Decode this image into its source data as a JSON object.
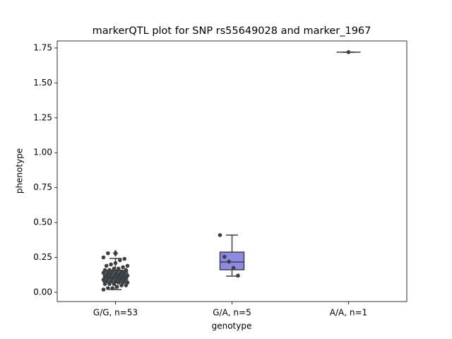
{
  "chart_data": {
    "type": "box",
    "title": "markerQTL plot for SNP rs55649028 and marker_1967",
    "x_label": "genotype",
    "y_label": "phenotype",
    "categories": [
      "G/G, n=53",
      "G/A, n=5",
      "A/A, n=1"
    ],
    "colors": [
      "#3a92c9",
      "#8b8ae6",
      "#5cb85c"
    ],
    "boxes": [
      {
        "whislo": 0.02,
        "q1": 0.07,
        "median": 0.11,
        "q3": 0.157,
        "whishi": 0.243,
        "fliers": [
          0.28
        ]
      },
      {
        "whislo": 0.116,
        "q1": 0.162,
        "median": 0.217,
        "q3": 0.288,
        "whishi": 0.41,
        "fliers": []
      },
      {
        "whislo": 1.72,
        "q1": 1.72,
        "median": 1.72,
        "q3": 1.72,
        "whishi": 1.72,
        "fliers": []
      }
    ],
    "points": [
      [
        0.02,
        0.03,
        0.03,
        0.04,
        0.05,
        0.05,
        0.06,
        0.06,
        0.06,
        0.07,
        0.07,
        0.07,
        0.08,
        0.08,
        0.08,
        0.09,
        0.09,
        0.09,
        0.1,
        0.1,
        0.1,
        0.1,
        0.11,
        0.11,
        0.11,
        0.11,
        0.12,
        0.12,
        0.12,
        0.12,
        0.13,
        0.13,
        0.13,
        0.14,
        0.14,
        0.14,
        0.15,
        0.15,
        0.15,
        0.16,
        0.16,
        0.16,
        0.17,
        0.17,
        0.18,
        0.19,
        0.19,
        0.2,
        0.21,
        0.23,
        0.24,
        0.25,
        0.28
      ],
      [
        0.41,
        0.255,
        0.22,
        0.175,
        0.12
      ],
      [
        1.72
      ]
    ],
    "ylim": [
      -0.066,
      1.8
    ],
    "yticks": [
      {
        "value": 0,
        "label": "0.00"
      },
      {
        "value": 0.25,
        "label": "0.25"
      },
      {
        "value": 0.5,
        "label": "0.50"
      },
      {
        "value": 0.75,
        "label": "0.75"
      },
      {
        "value": 1,
        "label": "1.00"
      },
      {
        "value": 1.25,
        "label": "1.25"
      },
      {
        "value": 1.5,
        "label": "1.50"
      },
      {
        "value": 1.75,
        "label": "1.75"
      }
    ],
    "grid": false
  }
}
